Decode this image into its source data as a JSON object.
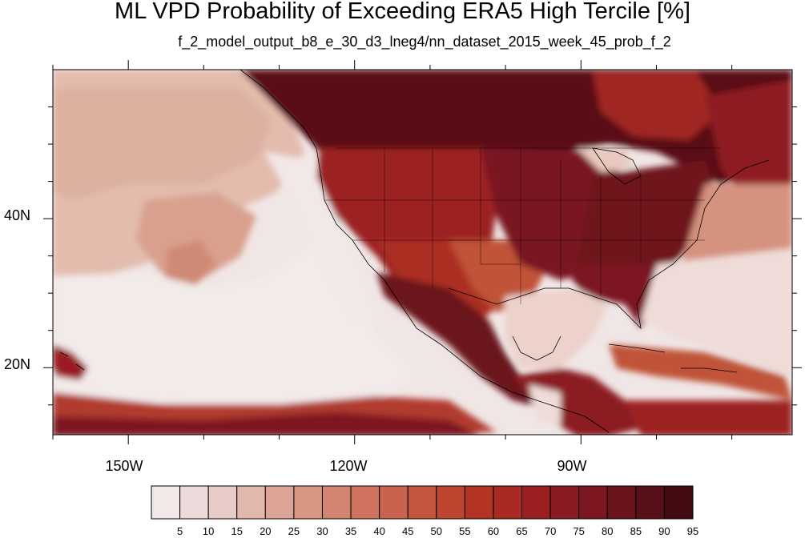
{
  "title": "ML VPD Probability of Exceeding ERA5 High Tercile [%]",
  "subtitle": "f_2_model_output_b8_e_30_d3_lneg4/nn_dataset_2015_week_45_prob_f_2",
  "map": {
    "lon_range": [
      -160,
      -62
    ],
    "lat_range": [
      11,
      60
    ],
    "lat_ticks": [
      "40N",
      "20N"
    ],
    "lon_ticks": [
      "150W",
      "120W",
      "90W"
    ]
  },
  "colorbar": {
    "labels": [
      "5",
      "10",
      "15",
      "20",
      "25",
      "30",
      "35",
      "40",
      "45",
      "50",
      "55",
      "60",
      "65",
      "70",
      "75",
      "80",
      "85",
      "90",
      "95"
    ],
    "colors": [
      "#f2e8e8",
      "#eddada",
      "#e8cbc6",
      "#e2b8ac",
      "#dca597",
      "#d99683",
      "#d28470",
      "#cf735f",
      "#c9634f",
      "#c4553f",
      "#be452f",
      "#b33425",
      "#a82a22",
      "#9a1f21",
      "#8b1a24",
      "#7c1722",
      "#6a131d",
      "#571018",
      "#410b11"
    ]
  }
}
